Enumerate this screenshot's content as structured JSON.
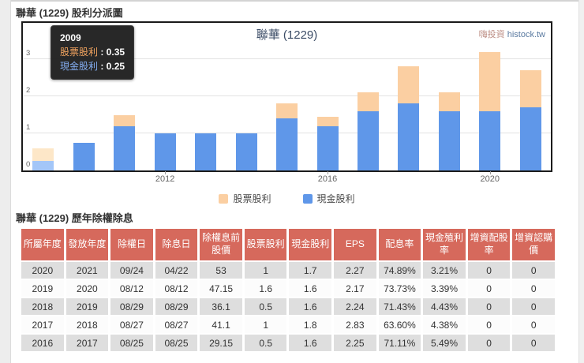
{
  "page": {
    "title": "聯華 (1229) 股利分派圖",
    "table_title": "聯華 (1229) 歷年除權除息"
  },
  "chart": {
    "title": "聯華 (1229)",
    "watermark_cn": "嗨投資",
    "watermark_en": "histock.tw",
    "tooltip": {
      "year": "2009",
      "rows": [
        {
          "label": "股票股利",
          "value": "0.35",
          "label_color": "#f3a45f"
        },
        {
          "label": "現金股利",
          "value": "0.25",
          "label_color": "#84aef2"
        }
      ]
    }
  },
  "chart_data": {
    "type": "bar",
    "stacked": true,
    "x": [
      2009,
      2010,
      2011,
      2012,
      2013,
      2014,
      2015,
      2016,
      2017,
      2018,
      2019,
      2020,
      2021
    ],
    "series": [
      {
        "name": "股票股利",
        "color": "#fbcfa2",
        "highlight_color": "#fde7c8",
        "values": [
          0.35,
          0,
          0.3,
          0,
          0,
          0,
          0.4,
          0.25,
          0.5,
          1.0,
          0.5,
          1.6,
          1.0
        ]
      },
      {
        "name": "現金股利",
        "color": "#5f97e9",
        "highlight_color": "#a3c6f8",
        "values": [
          0.25,
          0.75,
          1.2,
          1.0,
          1.0,
          1.0,
          1.4,
          1.2,
          1.6,
          1.8,
          1.6,
          1.6,
          1.7
        ]
      }
    ],
    "highlight_year": 2009,
    "title": "聯華 (1229)",
    "xlabel": "",
    "ylabel": "",
    "ylim": [
      0,
      3.5
    ],
    "yticks": [
      0,
      1,
      2,
      3
    ],
    "xtick_labels": [
      "2012",
      "2016",
      "2020"
    ],
    "grid": true,
    "legend_position": "bottom",
    "legend": [
      "股票股利",
      "現金股利"
    ]
  },
  "table": {
    "headers": [
      "所屬年度",
      "發放年度",
      "除權日",
      "除息日",
      "除權息前股價",
      "股票股利",
      "現金股利",
      "EPS",
      "配息率",
      "現金殖利率",
      "增資配股率",
      "增資認購價"
    ],
    "rows": [
      [
        "2020",
        "2021",
        "09/24",
        "04/22",
        "53",
        "1",
        "1.7",
        "2.27",
        "74.89%",
        "3.21%",
        "0",
        "0"
      ],
      [
        "2019",
        "2020",
        "08/12",
        "08/12",
        "47.15",
        "1.6",
        "1.6",
        "2.17",
        "73.73%",
        "3.39%",
        "0",
        "0"
      ],
      [
        "2018",
        "2019",
        "08/29",
        "08/29",
        "36.1",
        "0.5",
        "1.6",
        "2.24",
        "71.43%",
        "4.43%",
        "0",
        "0"
      ],
      [
        "2017",
        "2018",
        "08/27",
        "08/27",
        "41.1",
        "1",
        "1.8",
        "2.83",
        "63.60%",
        "4.38%",
        "0",
        "0"
      ],
      [
        "2016",
        "2017",
        "08/25",
        "08/25",
        "29.15",
        "0.5",
        "1.6",
        "2.25",
        "71.11%",
        "5.49%",
        "0",
        "0"
      ]
    ]
  },
  "colors": {
    "header_bg": "#d6695c",
    "row_alt_bg": "#dedede",
    "row_plain_bg": "#fcfcfc",
    "stock_dividend": "#fbcfa2",
    "cash_dividend": "#5f97e9",
    "chart_frame": "#1b1b1b",
    "gridline": "#e2e2e2"
  }
}
